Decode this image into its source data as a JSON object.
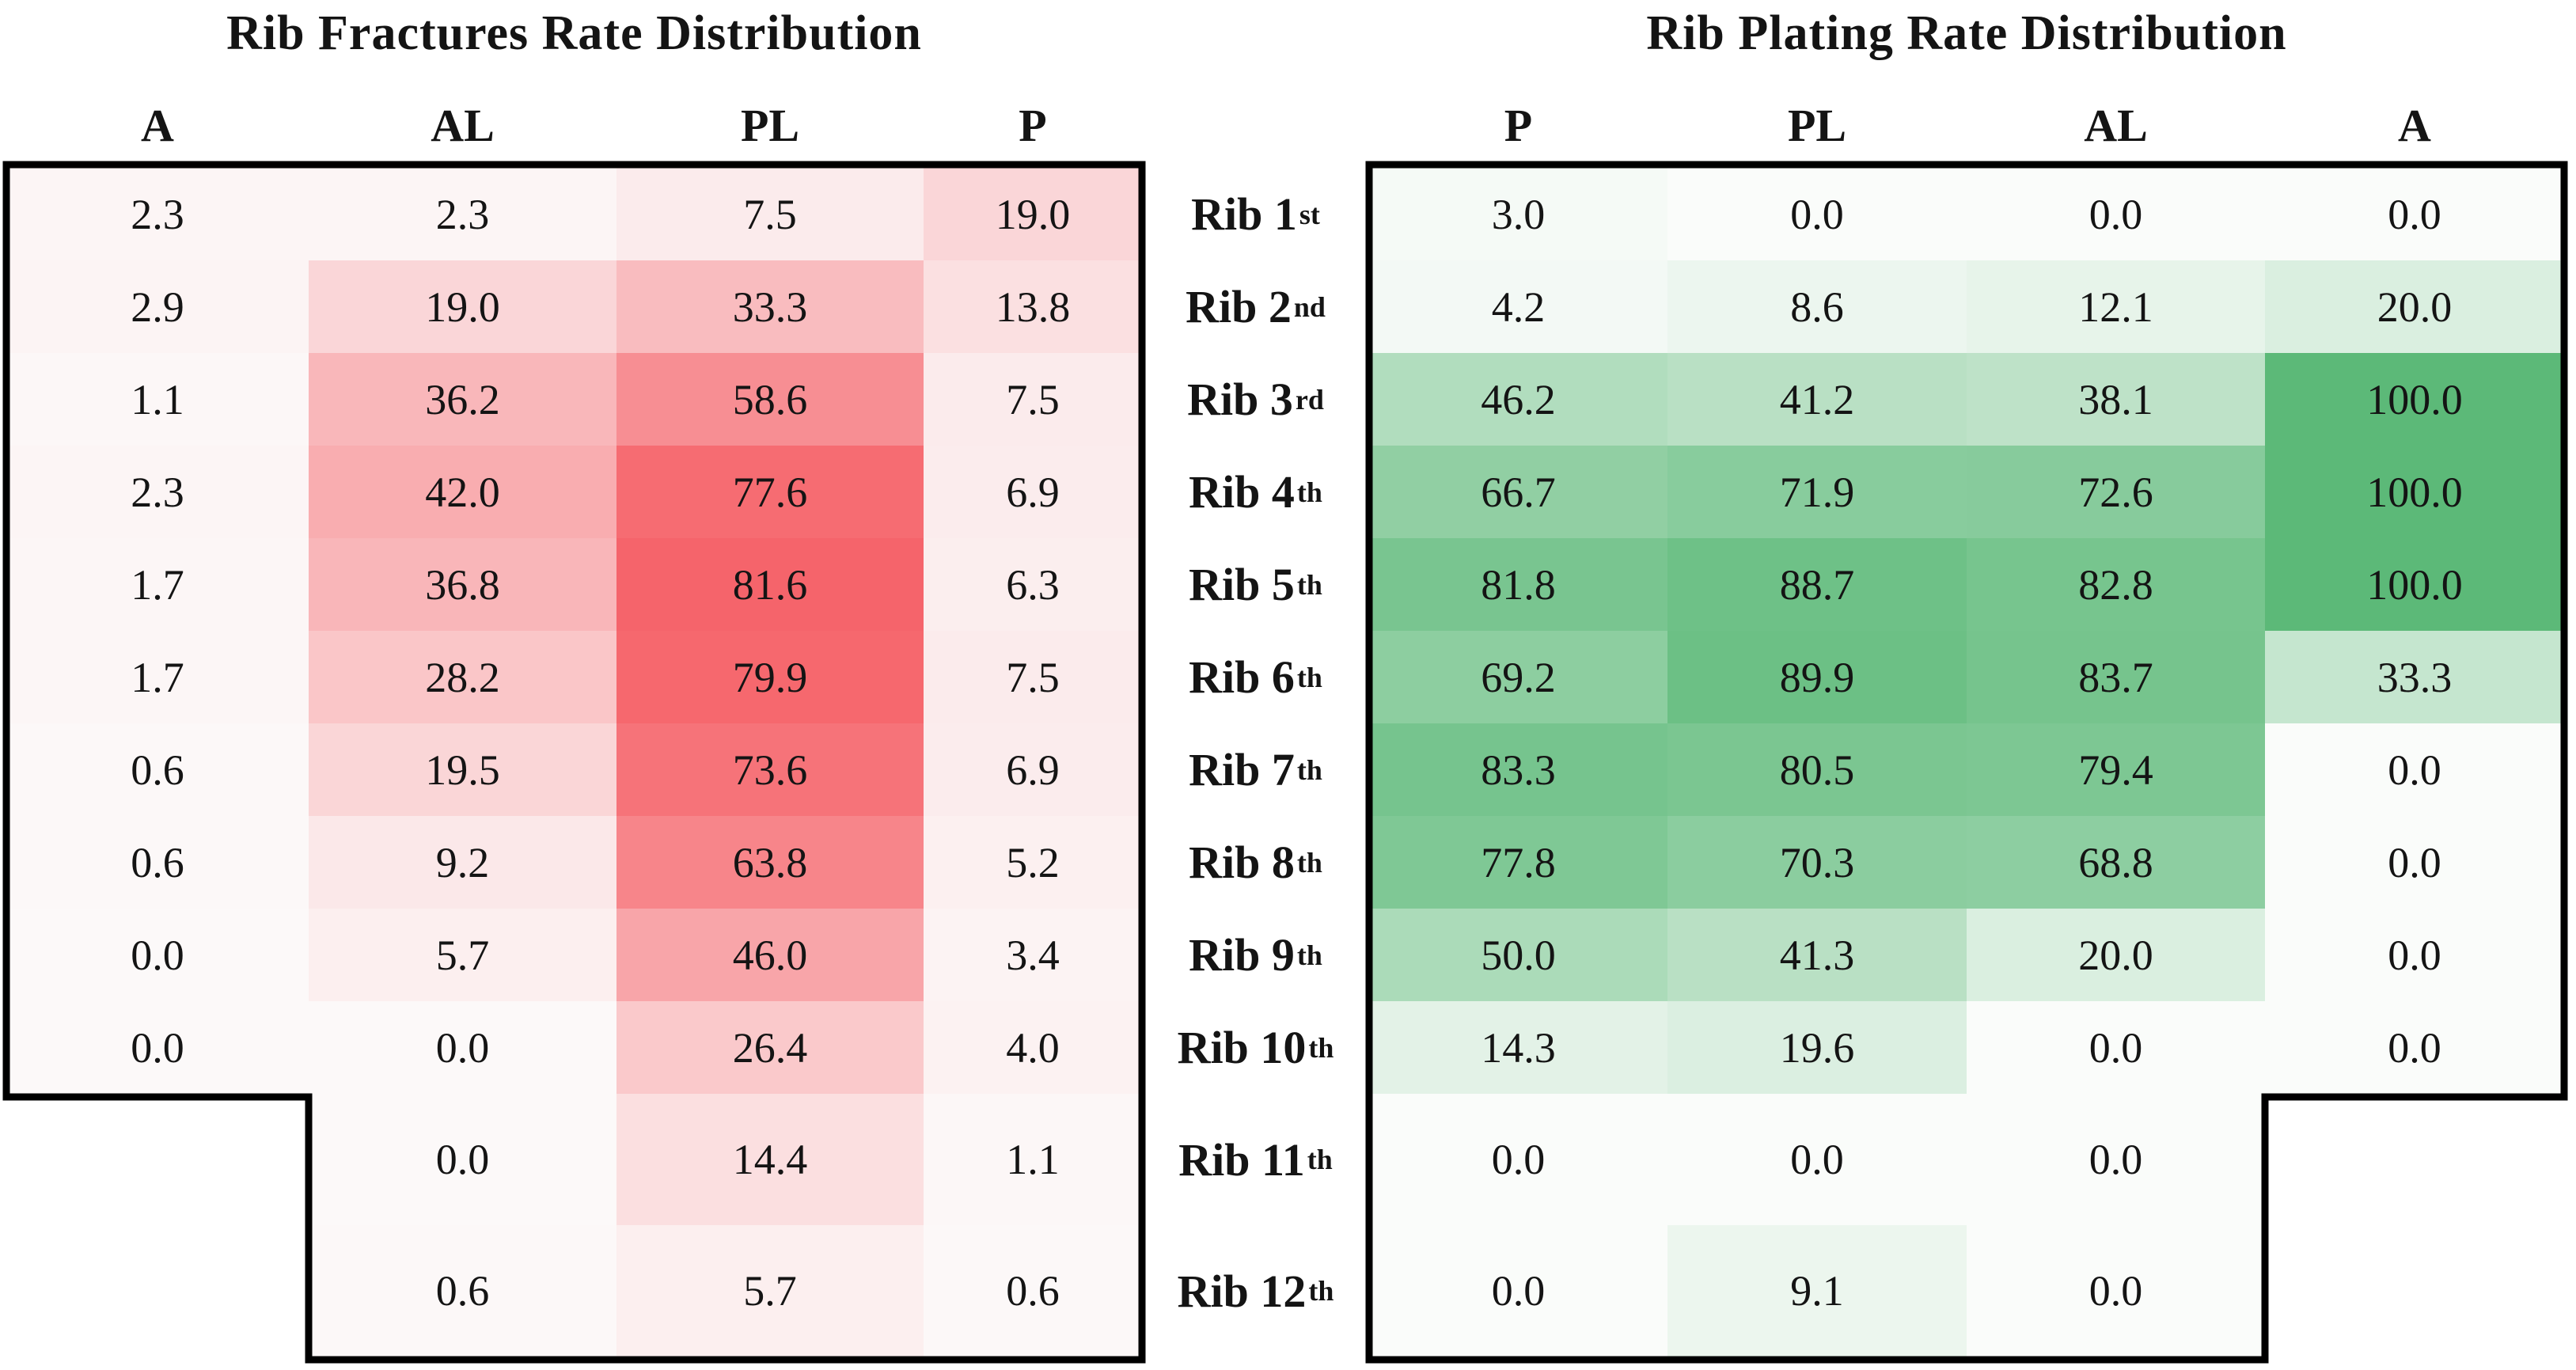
{
  "row_labels": [
    {
      "text": "Rib 1",
      "sup": "st"
    },
    {
      "text": "Rib 2",
      "sup": "nd"
    },
    {
      "text": "Rib 3",
      "sup": "rd"
    },
    {
      "text": "Rib 4",
      "sup": "th"
    },
    {
      "text": "Rib 5",
      "sup": "th"
    },
    {
      "text": "Rib 6",
      "sup": "th"
    },
    {
      "text": "Rib 7",
      "sup": "th"
    },
    {
      "text": "Rib 8",
      "sup": "th"
    },
    {
      "text": "Rib 9",
      "sup": "th"
    },
    {
      "text": "Rib 10",
      "sup": "th"
    },
    {
      "text": "Rib 11",
      "sup": "th"
    },
    {
      "text": "Rib 12",
      "sup": "th"
    }
  ],
  "colors": {
    "red_scale_min": "#fcf9f9",
    "red_scale_max": "#f4434b",
    "green_scale_min": "#fafcfa",
    "green_scale_max": "#5cb978",
    "border": "#000000",
    "text": "#141414",
    "background": "#ffffff"
  },
  "chart_data": [
    {
      "type": "heatmap",
      "title": "Rib Fractures Rate Distribution",
      "columns": [
        "A",
        "AL",
        "PL",
        "P"
      ],
      "rows": [
        "Rib 1st",
        "Rib 2nd",
        "Rib 3rd",
        "Rib 4th",
        "Rib 5th",
        "Rib 6th",
        "Rib 7th",
        "Rib 8th",
        "Rib 9th",
        "Rib 10th",
        "Rib 11th",
        "Rib 12th"
      ],
      "vmin": 0,
      "vmax": 100,
      "colormap": "white-to-red",
      "values": [
        [
          2.3,
          2.3,
          7.5,
          19.0
        ],
        [
          2.9,
          19.0,
          33.3,
          13.8
        ],
        [
          1.1,
          36.2,
          58.6,
          7.5
        ],
        [
          2.3,
          42.0,
          77.6,
          6.9
        ],
        [
          1.7,
          36.8,
          81.6,
          6.3
        ],
        [
          1.7,
          28.2,
          79.9,
          7.5
        ],
        [
          0.6,
          19.5,
          73.6,
          6.9
        ],
        [
          0.6,
          9.2,
          63.8,
          5.2
        ],
        [
          0.0,
          5.7,
          46.0,
          3.4
        ],
        [
          0.0,
          0.0,
          26.4,
          4.0
        ],
        [
          null,
          0.0,
          14.4,
          1.1
        ],
        [
          null,
          0.6,
          5.7,
          0.6
        ]
      ]
    },
    {
      "type": "heatmap",
      "title": "Rib Plating Rate Distribution",
      "columns": [
        "P",
        "PL",
        "AL",
        "A"
      ],
      "rows": [
        "Rib 1st",
        "Rib 2nd",
        "Rib 3rd",
        "Rib 4th",
        "Rib 5th",
        "Rib 6th",
        "Rib 7th",
        "Rib 8th",
        "Rib 9th",
        "Rib 10th",
        "Rib 11th",
        "Rib 12th"
      ],
      "vmin": 0,
      "vmax": 100,
      "colormap": "white-to-green",
      "values": [
        [
          3.0,
          0.0,
          0.0,
          0.0
        ],
        [
          4.2,
          8.6,
          12.1,
          20.0
        ],
        [
          46.2,
          41.2,
          38.1,
          100.0
        ],
        [
          66.7,
          71.9,
          72.6,
          100.0
        ],
        [
          81.8,
          88.7,
          82.8,
          100.0
        ],
        [
          69.2,
          89.9,
          83.7,
          33.3
        ],
        [
          83.3,
          80.5,
          79.4,
          0.0
        ],
        [
          77.8,
          70.3,
          68.8,
          0.0
        ],
        [
          50.0,
          41.3,
          20.0,
          0.0
        ],
        [
          14.3,
          19.6,
          0.0,
          0.0
        ],
        [
          0.0,
          0.0,
          0.0,
          null
        ],
        [
          0.0,
          9.1,
          0.0,
          null
        ]
      ]
    }
  ]
}
